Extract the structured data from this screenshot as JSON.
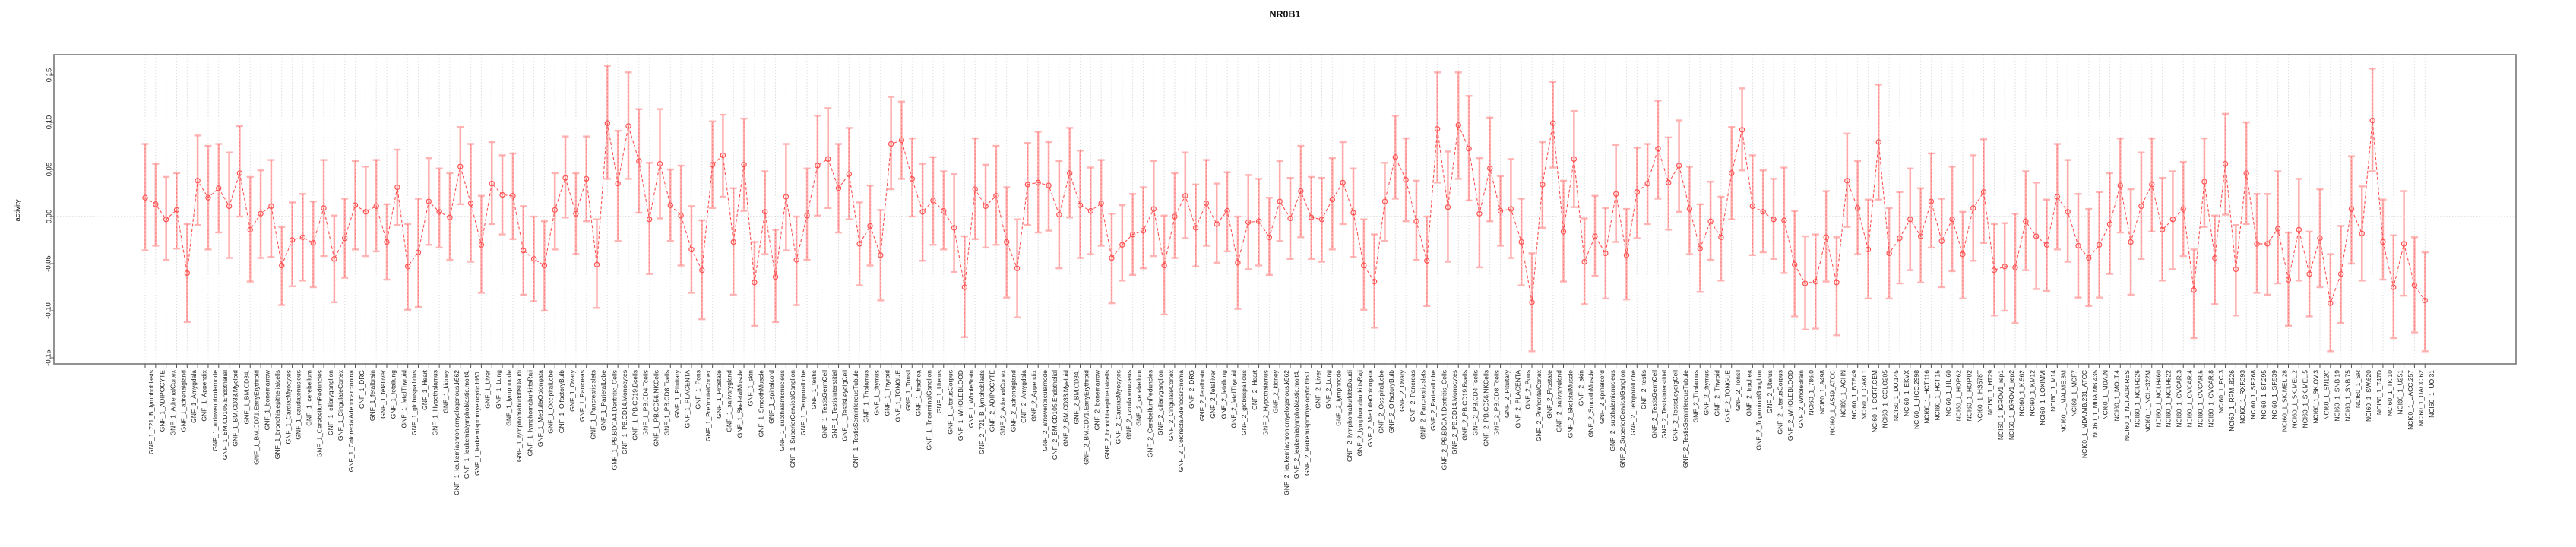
{
  "chart_data": {
    "type": "line",
    "title": "NR0B1",
    "xlabel": "",
    "ylabel": "activity",
    "legend": "none",
    "grid": {
      "vertical": "dotted line at every category",
      "horizontal": "dotted line at y=0"
    },
    "ylim": [
      -0.156,
      0.172
    ],
    "y_ticks": [
      -0.15,
      -0.1,
      -0.05,
      0.0,
      0.05,
      0.1,
      0.15
    ],
    "y_tick_labels": [
      "-0.15",
      "-0.10",
      "-0.05",
      "0.00",
      "0.05",
      "0.10",
      "0.15"
    ],
    "point_style": "open circle with error bars, dashed connecting line",
    "colors": {
      "point": "#ff5252",
      "line": "#ff5252",
      "error_bar": "#ffb3b3",
      "error_bar_dash": "#ff6b6b",
      "grid": "#dcdcdc",
      "zero_line": "#c8c8c8",
      "axis": "#777777",
      "text": "#222222"
    },
    "categories": [
      "GNF_1_721_B_lymphoblasts",
      "GNF_1_ADIPOCYTE",
      "GNF_1_AdrenalCortex",
      "GNF_1_adrenalgland",
      "GNF_1_Amygdala",
      "GNF_1_Appendix",
      "GNF_1_atrioventricularnode",
      "GNF_1_BM.CD105.Endothelial",
      "GNF_1_BM.CD33.Myeloid",
      "GNF_1_BM.CD34.",
      "GNF_1_BM.CD71.EarlyErythroid",
      "GNF_1_bonemarrow",
      "GNF_1_bronchialepithelialcells",
      "GNF_1_CardiacMyocytes",
      "GNF_1_caudatenucleus",
      "GNF_1_cerebellum",
      "GNF_1_CerebellumPeduncles",
      "GNF_1_ciliaryganglion",
      "GNF_1_CingulateCortex",
      "GNF_1_ColorectalAdenocarcinoma",
      "GNF_1_DRG",
      "GNF_1_fetalbrain",
      "GNF_1_fetalliver",
      "GNF_1_fetallung",
      "GNF_1_fetalThyroid",
      "GNF_1_globuspallidus",
      "GNF_1_Heart",
      "GNF_1_Hypothalamus",
      "GNF_1_kidney",
      "GNF_1_leukemiachronicmyelogenous.k562",
      "GNF_1_leukemialymphoblastic.molt4.",
      "GNF_1_leukemiapromyelocytic.hl60.",
      "GNF_1_Liver",
      "GNF_1_Lung",
      "GNF_1_lymphnode",
      "GNF_1_lymphomaburkittsDaudi",
      "GNF_1_lymphomaburkittsRaji",
      "GNF_1_MedullaOblongata",
      "GNF_1_OccipitalLobe",
      "GNF_1_OlfactoryBulb",
      "GNF_1_Ovary",
      "GNF_1_Pancreas",
      "GNF_1_Pancreaticislets",
      "GNF_1_ParietalLobe",
      "GNF_1_PB.BDCA4.Dentritic_Cells",
      "GNF_1_PB.CD14.Monocytes",
      "GNF_1_PB.CD19.Bcells",
      "GNF_1_PB.CD4.Tcells",
      "GNF_1_PB.CD56.NKCells",
      "GNF_1_PB.CD8.Tcells",
      "GNF_1_Pituitary",
      "GNF_1_PLACENTA",
      "GNF_1_Pons",
      "GNF_1_PrefrontalCortex",
      "GNF_1_Prostate",
      "GNF_1_salivarygland",
      "GNF_1_SkeletalMuscle",
      "GNF_1_skin",
      "GNF_1_SmoothMuscle",
      "GNF_1_spinalcord",
      "GNF_1_subthalamicnucleus",
      "GNF_1_SuperiorCervicalGanglion",
      "GNF_1_TemporalLobe",
      "GNF_1_testis",
      "GNF_1_TestisGermCell",
      "GNF_1_TestisInterstitial",
      "GNF_1_TestisLeydigCell",
      "GNF_1_TestisSeminiferousTubule",
      "GNF_1_Thalamus",
      "GNF_1_thymus",
      "GNF_1_Thyroid",
      "GNF_1_TONGUE",
      "GNF_1_Tonsil",
      "GNF_1_trachea",
      "GNF_1_TrigeminalGanglion",
      "GNF_1_Uterus",
      "GNF_1_UterusCorpus",
      "GNF_1_WHOLEBLOOD",
      "GNF_1_WholeBrain",
      "GNF_2_721_B_lymphoblasts",
      "GNF_2_ADIPOCYTE",
      "GNF_2_AdrenalCortex",
      "GNF_2_adrenalgland",
      "GNF_2_Amygdala",
      "GNF_2_Appendix",
      "GNF_2_atrioventricularnode",
      "GNF_2_BM.CD105.Endothelial",
      "GNF_2_BM.CD33.Myeloid",
      "GNF_2_BM.CD34.",
      "GNF_2_BM.CD71.EarlyErythroid",
      "GNF_2_bonemarrow",
      "GNF_2_bronchialepithelialcells",
      "GNF_2_CardiacMyocytes",
      "GNF_2_caudatenucleus",
      "GNF_2_cerebellum",
      "GNF_2_CerebellumPeduncles",
      "GNF_2_ciliaryganglion",
      "GNF_2_CingulateCortex",
      "GNF_2_ColorectalAdenocarcinoma",
      "GNF_2_DRG",
      "GNF_2_fetalbrain",
      "GNF_2_fetalliver",
      "GNF_2_fetallung",
      "GNF_2_fetalThyroid",
      "GNF_2_globuspallidus",
      "GNF_2_Heart",
      "GNF_2_Hypothalamus",
      "GNF_2_kidney",
      "GNF_2_leukemiachronicmyelogenous.k562",
      "GNF_2_leukemialymphoblastic.molt4.",
      "GNF_2_leukemiapromyelocytic.hl60.",
      "GNF_2_Liver",
      "GNF_2_Lung",
      "GNF_2_lymphnode",
      "GNF_2_lymphomaburkittsDaudi",
      "GNF_2_lymphomaburkittsRaji",
      "GNF_2_MedullaOblongata",
      "GNF_2_OccipitalLobe",
      "GNF_2_OlfactoryBulb",
      "GNF_2_Ovary",
      "GNF_2_Pancreas",
      "GNF_2_Pancreaticislets",
      "GNF_2_ParietalLobe",
      "GNF_2_PB.BDCA4.Dentritic_Cells",
      "GNF_2_PB.CD14.Monocytes",
      "GNF_2_PB.CD19.Bcells",
      "GNF_2_PB.CD4.Tcells",
      "GNF_2_PB.CD56.NKCells",
      "GNF_2_PB.CD8.Tcells",
      "GNF_2_Pituitary",
      "GNF_2_PLACENTA",
      "GNF_2_Pons",
      "GNF_2_PrefrontalCortex",
      "GNF_2_Prostate",
      "GNF_2_salivarygland",
      "GNF_2_SkeletalMuscle",
      "GNF_2_skin",
      "GNF_2_SmoothMuscle",
      "GNF_2_spinalcord",
      "GNF_2_subthalamicnucleus",
      "GNF_2_SuperiorCervicalGanglion",
      "GNF_2_TemporalLobe",
      "GNF_2_testis",
      "GNF_2_TestisGermCell",
      "GNF_2_TestisInterstitial",
      "GNF_2_TestisLeydigCell",
      "GNF_2_TestisSeminiferousTubule",
      "GNF_2_Thalamus",
      "GNF_2_thymus",
      "GNF_2_Thyroid",
      "GNF_2_TONGUE",
      "GNF_2_Tonsil",
      "GNF_2_trachea",
      "GNF_2_TrigeminalGanglion",
      "GNF_2_Uterus",
      "GNF_2_UterusCorpus",
      "GNF_2_WHOLEBLOOD",
      "GNF_2_WholeBrain",
      "NCI60_1_786.0",
      "NCI60_1_A498",
      "NCI60_1_A549_ATCC",
      "NCI60_1_ACHN",
      "NCI60_1_BT.549",
      "NCI60_1_CAKI.1",
      "NCI60_1_CCRF.CEM",
      "NCI60_1_COLO205",
      "NCI60_1_DU.145",
      "NCI60_1_EKVX",
      "NCI60_1_HCC.2998",
      "NCI60_1_HCT.116",
      "NCI60_1_HCT.15",
      "NCI60_1_HL.60",
      "NCI60_1_HOP.62",
      "NCI60_1_HOP.92",
      "NCI60_1_HS578T",
      "NCI60_1_HT29",
      "NCI60_1_IGROV1_rep1",
      "NCI60_1_IGROV1_rep2",
      "NCI60_1_K.562",
      "NCI60_1_KM12",
      "NCI60_1_LOXIMVI",
      "NCI60_1_M14",
      "NCI60_1_MALME.3M",
      "NCI60_1_MCF7",
      "NCI60_1_MDA.MB.231_ATCC",
      "NCI60_1_MDA.MB.435",
      "NCI60_1_MDA.N",
      "NCI60_1_MOLT.4",
      "NCI60_1_NCI.ADR.RES",
      "NCI60_1_NCI.H226",
      "NCI60_1_NCI.H322M",
      "NCI60_1_NCI.H460",
      "NCI60_1_NCI.H522",
      "NCI60_1_OVCAR.3",
      "NCI60_1_OVCAR.4",
      "NCI60_1_OVCAR.5",
      "NCI60_1_OVCAR.8",
      "NCI60_1_PC.3",
      "NCI60_1_RPMI.8226",
      "NCI60_1_RXF.393",
      "NCI60_1_SF.268",
      "NCI60_1_SF.295",
      "NCI60_1_SF.539",
      "NCI60_1_SK.MEL.28",
      "NCI60_1_SK.MEL.2",
      "NCI60_1_SK.MEL.5",
      "NCI60_1_SK.OV.3",
      "NCI60_1_SN12C",
      "NCI60_1_SNB.19",
      "NCI60_1_SNB.75",
      "NCI60_1_SR",
      "NCI60_1_SW.620",
      "NCI60_1_T47D",
      "NCI60_1_TK.10",
      "NCI60_1_U251",
      "NCI60_1_UACC.257",
      "NCI60_1_UACC.62",
      "NCI60_1_UO.31"
    ],
    "series": [
      {
        "name": "activity",
        "values": [
          0.02,
          0.013,
          -0.003,
          0.007,
          -0.06,
          0.038,
          0.02,
          0.03,
          0.011,
          0.046,
          -0.014,
          0.003,
          0.011,
          -0.052,
          -0.025,
          -0.022,
          -0.028,
          0.009,
          -0.045,
          -0.023,
          0.012,
          0.005,
          0.011,
          -0.027,
          0.031,
          -0.053,
          -0.038,
          0.016,
          0.005,
          -0.001,
          0.053,
          0.014,
          -0.03,
          0.035,
          0.023,
          0.022,
          -0.036,
          -0.045,
          -0.052,
          0.007,
          0.041,
          0.003,
          0.04,
          -0.051,
          0.099,
          0.035,
          0.096,
          0.059,
          -0.003,
          0.056,
          0.012,
          0.001,
          -0.035,
          -0.057,
          0.055,
          0.065,
          -0.027,
          0.055,
          -0.07,
          0.005,
          -0.064,
          0.021,
          -0.046,
          0.001,
          0.054,
          0.061,
          0.03,
          0.045,
          -0.029,
          -0.01,
          -0.041,
          0.077,
          0.081,
          0.04,
          0.005,
          0.017,
          0.006,
          -0.012,
          -0.075,
          0.029,
          0.011,
          0.022,
          -0.027,
          -0.055,
          0.034,
          0.036,
          0.033,
          0.002,
          0.046,
          0.012,
          0.006,
          0.014,
          -0.044,
          -0.03,
          -0.019,
          -0.015,
          0.008,
          -0.052,
          0.0,
          0.022,
          -0.012,
          0.014,
          -0.008,
          0.006,
          -0.049,
          -0.006,
          -0.005,
          -0.022,
          0.016,
          -0.002,
          0.027,
          -0.001,
          -0.003,
          0.018,
          0.036,
          0.004,
          -0.052,
          -0.069,
          0.016,
          0.063,
          0.039,
          -0.005,
          -0.047,
          0.093,
          0.01,
          0.097,
          0.072,
          0.003,
          0.051,
          0.006,
          0.008,
          -0.027,
          -0.091,
          0.034,
          0.099,
          -0.016,
          0.061,
          -0.048,
          -0.021,
          -0.039,
          0.024,
          -0.041,
          0.026,
          0.035,
          0.072,
          0.036,
          0.054,
          0.008,
          -0.034,
          -0.005,
          -0.022,
          0.046,
          0.092,
          0.011,
          0.005,
          -0.003,
          -0.004,
          -0.051,
          -0.071,
          -0.069,
          -0.022,
          -0.07,
          0.038,
          0.009,
          -0.035,
          0.079,
          -0.039,
          -0.023,
          -0.003,
          -0.021,
          0.016,
          -0.026,
          -0.003,
          -0.04,
          0.009,
          0.026,
          -0.057,
          -0.053,
          -0.054,
          -0.005,
          -0.021,
          -0.03,
          0.021,
          0.005,
          -0.031,
          -0.044,
          -0.03,
          -0.008,
          0.033,
          -0.027,
          0.011,
          0.034,
          -0.014,
          -0.003,
          0.008,
          -0.078,
          0.037,
          -0.044,
          0.056,
          -0.056,
          0.046,
          -0.029,
          -0.029,
          -0.013,
          -0.067,
          -0.014,
          -0.061,
          -0.023,
          -0.092,
          -0.061,
          0.008,
          -0.018,
          0.102,
          -0.027,
          -0.075,
          -0.029,
          -0.073,
          -0.089
        ],
        "lower": [
          -0.036,
          -0.031,
          -0.046,
          -0.034,
          -0.112,
          -0.009,
          -0.035,
          -0.017,
          -0.044,
          0.0,
          -0.069,
          -0.044,
          -0.043,
          -0.094,
          -0.074,
          -0.068,
          -0.075,
          -0.042,
          -0.091,
          -0.065,
          -0.035,
          -0.042,
          -0.037,
          -0.067,
          -0.009,
          -0.099,
          -0.096,
          -0.03,
          -0.033,
          -0.046,
          0.013,
          -0.048,
          -0.081,
          -0.008,
          -0.019,
          -0.024,
          -0.083,
          -0.09,
          -0.1,
          -0.035,
          -0.001,
          -0.04,
          -0.005,
          -0.097,
          0.04,
          -0.026,
          0.04,
          0.004,
          -0.061,
          -0.002,
          -0.026,
          -0.052,
          -0.081,
          -0.109,
          0.009,
          0.021,
          -0.083,
          0.006,
          -0.116,
          -0.04,
          -0.112,
          -0.036,
          -0.094,
          -0.046,
          0.001,
          0.009,
          -0.017,
          -0.003,
          -0.073,
          -0.052,
          -0.089,
          0.029,
          0.04,
          0.0,
          -0.047,
          -0.03,
          -0.035,
          -0.059,
          -0.128,
          -0.024,
          -0.033,
          -0.03,
          -0.086,
          -0.107,
          -0.009,
          -0.017,
          -0.015,
          -0.055,
          -0.001,
          -0.044,
          -0.04,
          -0.031,
          -0.092,
          -0.068,
          -0.062,
          -0.055,
          -0.042,
          -0.104,
          -0.044,
          -0.023,
          -0.053,
          -0.031,
          -0.049,
          -0.037,
          -0.098,
          -0.056,
          -0.052,
          -0.062,
          -0.026,
          -0.045,
          -0.022,
          -0.045,
          -0.048,
          -0.035,
          -0.008,
          -0.043,
          -0.099,
          -0.118,
          -0.026,
          0.019,
          -0.005,
          -0.046,
          -0.095,
          0.036,
          -0.048,
          0.04,
          0.017,
          -0.054,
          -0.005,
          -0.031,
          -0.044,
          -0.073,
          -0.143,
          -0.012,
          0.052,
          -0.069,
          0.01,
          -0.093,
          -0.063,
          -0.087,
          -0.027,
          -0.088,
          -0.023,
          -0.008,
          0.019,
          -0.014,
          0.005,
          -0.04,
          -0.08,
          -0.046,
          -0.068,
          -0.003,
          0.049,
          -0.041,
          -0.038,
          -0.045,
          -0.06,
          -0.106,
          -0.12,
          -0.119,
          -0.069,
          -0.126,
          -0.011,
          -0.04,
          -0.087,
          0.018,
          -0.087,
          -0.071,
          -0.057,
          -0.07,
          -0.033,
          -0.075,
          -0.058,
          -0.087,
          -0.047,
          -0.028,
          -0.105,
          -0.1,
          -0.113,
          -0.057,
          -0.077,
          -0.079,
          -0.035,
          -0.048,
          -0.086,
          -0.095,
          -0.086,
          -0.061,
          -0.017,
          -0.083,
          -0.045,
          -0.016,
          -0.068,
          -0.056,
          -0.042,
          -0.129,
          -0.011,
          -0.093,
          0.002,
          -0.105,
          -0.008,
          -0.081,
          -0.083,
          -0.071,
          -0.116,
          -0.068,
          -0.106,
          -0.075,
          -0.143,
          -0.113,
          -0.05,
          -0.068,
          0.048,
          -0.067,
          -0.129,
          -0.084,
          -0.123,
          -0.143
        ],
        "upper": [
          0.077,
          0.056,
          0.042,
          0.046,
          -0.008,
          0.086,
          0.075,
          0.077,
          0.068,
          0.096,
          0.042,
          0.049,
          0.06,
          -0.011,
          0.015,
          0.024,
          0.016,
          0.06,
          0.001,
          0.019,
          0.059,
          0.053,
          0.06,
          0.013,
          0.071,
          -0.008,
          0.019,
          0.062,
          0.051,
          0.046,
          0.095,
          0.077,
          0.022,
          0.079,
          0.065,
          0.067,
          0.011,
          0.0,
          -0.005,
          0.046,
          0.085,
          0.046,
          0.085,
          -0.003,
          0.16,
          0.091,
          0.153,
          0.114,
          0.057,
          0.114,
          0.05,
          0.054,
          0.011,
          -0.004,
          0.101,
          0.108,
          0.03,
          0.104,
          -0.027,
          0.048,
          -0.014,
          0.077,
          0.0,
          0.051,
          0.107,
          0.115,
          0.077,
          0.094,
          0.015,
          0.033,
          0.007,
          0.127,
          0.122,
          0.083,
          0.056,
          0.063,
          0.048,
          0.045,
          -0.021,
          0.083,
          0.055,
          0.075,
          0.031,
          -0.003,
          0.078,
          0.09,
          0.079,
          0.059,
          0.094,
          0.07,
          0.052,
          0.06,
          0.003,
          0.012,
          0.024,
          0.031,
          0.059,
          0.001,
          0.046,
          0.068,
          0.034,
          0.06,
          0.035,
          0.047,
          0.0,
          0.044,
          0.04,
          0.02,
          0.059,
          0.041,
          0.075,
          0.042,
          0.041,
          0.062,
          0.079,
          0.051,
          -0.003,
          -0.019,
          0.057,
          0.107,
          0.083,
          0.038,
          0.0,
          0.153,
          0.069,
          0.153,
          0.128,
          0.062,
          0.105,
          0.043,
          0.061,
          0.019,
          -0.039,
          0.079,
          0.143,
          0.038,
          0.112,
          -0.002,
          0.022,
          0.009,
          0.076,
          0.008,
          0.073,
          0.077,
          0.123,
          0.084,
          0.102,
          0.053,
          0.013,
          0.037,
          0.021,
          0.095,
          0.136,
          0.065,
          0.049,
          0.04,
          0.052,
          0.006,
          -0.021,
          -0.019,
          0.027,
          -0.022,
          0.088,
          0.059,
          0.018,
          0.14,
          0.009,
          0.026,
          0.051,
          0.03,
          0.067,
          0.019,
          0.053,
          0.005,
          0.065,
          0.082,
          -0.008,
          -0.007,
          0.003,
          0.048,
          0.036,
          0.018,
          0.077,
          0.06,
          0.024,
          0.008,
          0.026,
          0.046,
          0.083,
          0.029,
          0.068,
          0.083,
          0.041,
          0.048,
          0.058,
          -0.035,
          0.083,
          0.001,
          0.109,
          -0.009,
          0.1,
          0.024,
          0.024,
          0.048,
          -0.017,
          0.04,
          -0.016,
          0.029,
          -0.04,
          -0.01,
          0.064,
          0.032,
          0.157,
          0.018,
          -0.02,
          0.027,
          -0.022,
          -0.038
        ]
      }
    ]
  }
}
